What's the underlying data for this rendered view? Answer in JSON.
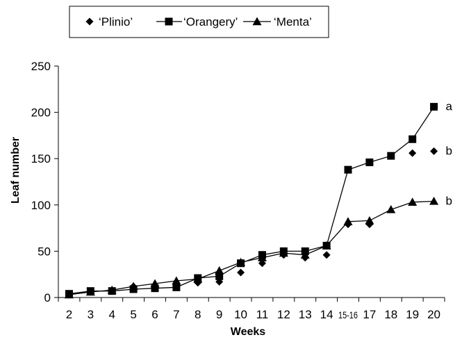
{
  "chart_data": {
    "type": "line",
    "title": "",
    "xlabel": "Weeks",
    "ylabel": "Leaf number",
    "categories": [
      "2",
      "3",
      "4",
      "5",
      "6",
      "7",
      "8",
      "9",
      "10",
      "11",
      "12",
      "13",
      "14",
      "15-16",
      "17",
      "18",
      "19",
      "20"
    ],
    "ylim": [
      0,
      250
    ],
    "yticks": [
      0,
      50,
      100,
      150,
      200,
      250
    ],
    "grid": false,
    "legend_position": "top",
    "series": [
      {
        "name": "‘Plinio’",
        "marker": "diamond",
        "line": false,
        "values": [
          3,
          6,
          7,
          12,
          12,
          12,
          16,
          17,
          27,
          37,
          46,
          43,
          46,
          79,
          79,
          null,
          156,
          158
        ]
      },
      {
        "name": "‘Orangery’",
        "marker": "square",
        "line": true,
        "values": [
          4,
          7,
          7,
          9,
          10,
          11,
          21,
          23,
          37,
          46,
          50,
          50,
          56,
          138,
          146,
          153,
          171,
          206
        ]
      },
      {
        "name": "‘Menta’",
        "marker": "triangle",
        "line": true,
        "values": [
          3,
          6,
          8,
          12,
          15,
          18,
          20,
          29,
          38,
          43,
          48,
          46,
          56,
          82,
          83,
          95,
          103,
          104
        ]
      }
    ],
    "annotations": [
      {
        "text": "a",
        "series": 1
      },
      {
        "text": "b",
        "series": 0
      },
      {
        "text": "b",
        "series": 2
      }
    ]
  }
}
